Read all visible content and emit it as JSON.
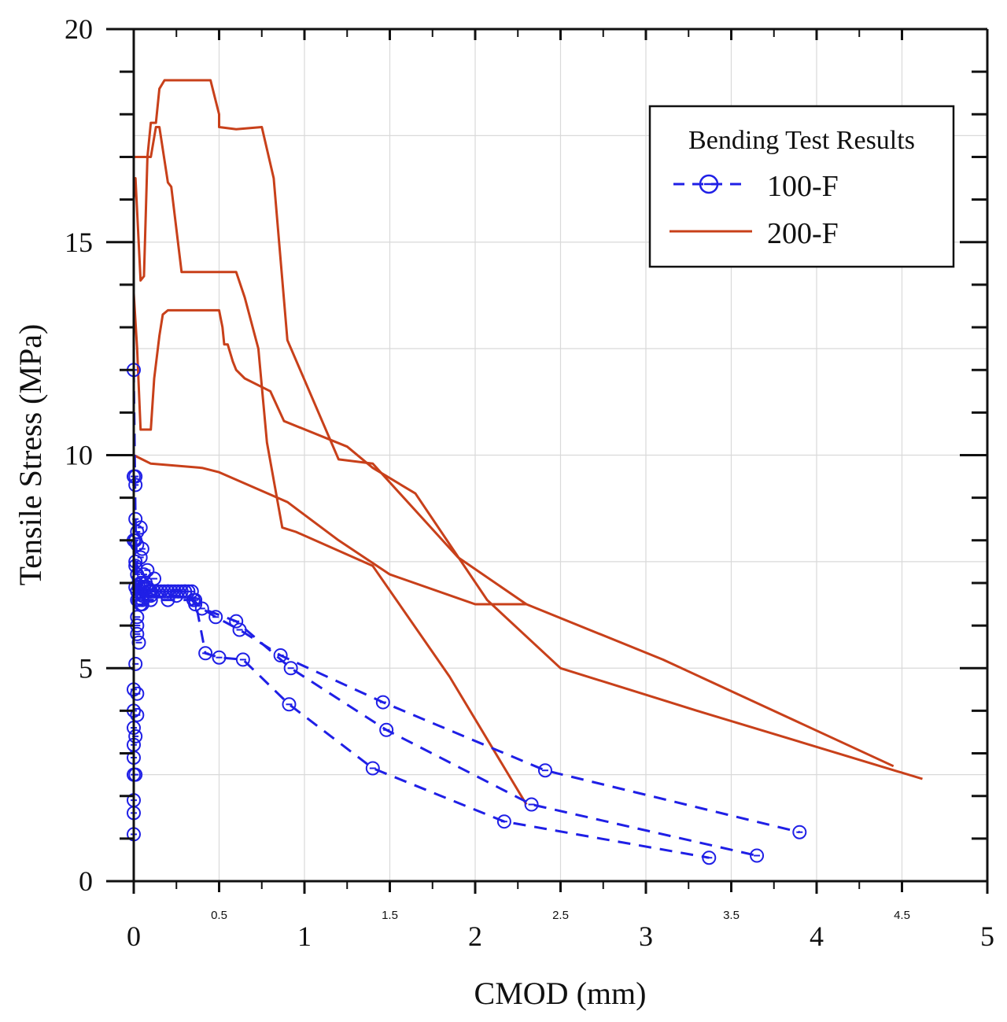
{
  "chart_data": {
    "type": "line",
    "title": "",
    "xlabel": "CMOD (mm)",
    "ylabel": "Tensile Stress (MPa)",
    "xlim": [
      0,
      5
    ],
    "ylim": [
      0,
      20
    ],
    "grid": true,
    "x_major_ticks": [
      "0",
      "1",
      "2",
      "3",
      "4",
      "5"
    ],
    "x_minor_ticks": [
      "0.5",
      "1.5",
      "2.5",
      "3.5",
      "4.5"
    ],
    "y_major_ticks": [
      "0",
      "5",
      "10",
      "15",
      "20"
    ],
    "legend": {
      "title": "Bending Test Results",
      "placement": "top-right",
      "entries": [
        "100-F",
        "200-F"
      ]
    },
    "colors": {
      "100-F": "#1f1fe6",
      "200-F": "#c8401a",
      "axis": "#111111",
      "grid": "#d9d9d9"
    },
    "series": [
      {
        "name": "100-F",
        "style": "dashed-circle",
        "curves": [
          {
            "x": [
              0.0,
              0.01,
              0.02,
              0.03,
              0.04,
              0.06,
              0.1,
              0.2,
              0.3,
              0.36,
              0.48,
              0.62,
              0.86,
              1.46,
              2.41,
              3.9
            ],
            "y": [
              12.0,
              8.5,
              7.2,
              6.9,
              7.0,
              6.9,
              6.8,
              6.8,
              6.8,
              6.5,
              6.2,
              5.9,
              5.3,
              4.2,
              2.6,
              1.15
            ]
          },
          {
            "x": [
              0.0,
              0.01,
              0.02,
              0.05,
              0.1,
              0.25,
              0.35,
              0.4,
              0.6,
              0.92,
              1.48,
              2.33,
              3.65
            ],
            "y": [
              9.5,
              7.5,
              6.8,
              6.7,
              6.7,
              6.7,
              6.6,
              6.4,
              6.1,
              5.0,
              3.55,
              1.8,
              0.6
            ]
          },
          {
            "x": [
              0.0,
              0.01,
              0.02,
              0.05,
              0.1,
              0.2,
              0.36,
              0.42,
              0.5,
              0.64,
              0.91,
              1.4,
              2.17,
              3.37
            ],
            "y": [
              8.0,
              6.9,
              6.6,
              6.6,
              6.6,
              6.6,
              6.6,
              5.35,
              5.25,
              5.2,
              4.15,
              2.65,
              1.4,
              0.55
            ]
          }
        ],
        "scatter_x": [
          0.0,
          0.0,
          0.0,
          0.0,
          0.0,
          0.0,
          0.0,
          0.0,
          0.0,
          0.01,
          0.01,
          0.01,
          0.01,
          0.02,
          0.02,
          0.02,
          0.02,
          0.03,
          0.03,
          0.03,
          0.04,
          0.04,
          0.04,
          0.05,
          0.05,
          0.06,
          0.07,
          0.08,
          0.09,
          0.1,
          0.12,
          0.14,
          0.16,
          0.18,
          0.2,
          0.22,
          0.24,
          0.26,
          0.28,
          0.3,
          0.32,
          0.34,
          0.01,
          0.01,
          0.02,
          0.02,
          0.01,
          0.03,
          0.02,
          0.04,
          0.05,
          0.08,
          0.12
        ],
        "scatter_y": [
          1.1,
          1.6,
          1.9,
          2.5,
          2.9,
          3.2,
          3.6,
          4.0,
          4.5,
          9.5,
          9.3,
          8.0,
          7.4,
          8.2,
          7.9,
          6.2,
          5.8,
          7.1,
          6.9,
          6.6,
          8.3,
          7.6,
          6.8,
          7.8,
          7.0,
          7.2,
          7.0,
          6.9,
          6.8,
          6.8,
          6.8,
          6.8,
          6.8,
          6.8,
          6.8,
          6.8,
          6.8,
          6.8,
          6.8,
          6.8,
          6.8,
          6.8,
          2.5,
          3.4,
          3.9,
          4.4,
          5.1,
          5.6,
          6.0,
          6.5,
          6.5,
          7.3,
          7.1
        ]
      },
      {
        "name": "200-F",
        "style": "solid",
        "curves": [
          {
            "x": [
              0.0,
              0.0,
              0.05,
              0.08,
              0.1,
              0.13,
              0.15,
              0.18,
              0.45,
              0.5,
              0.5,
              0.6,
              0.75,
              0.82,
              0.9,
              1.2,
              1.4,
              1.9,
              2.3
            ],
            "y": [
              15.0,
              17.0,
              17.0,
              17.0,
              17.8,
              17.8,
              18.6,
              18.8,
              18.8,
              18.0,
              17.7,
              17.65,
              17.7,
              16.5,
              12.7,
              9.9,
              9.8,
              7.6,
              6.5
            ]
          },
          {
            "x": [
              0.0,
              0.01,
              0.04,
              0.06,
              0.08,
              0.1,
              0.13,
              0.15,
              0.2,
              0.22,
              0.28,
              0.6,
              0.65,
              0.73,
              0.78,
              0.87,
              0.95,
              1.4,
              1.85,
              2.3
            ],
            "y": [
              16.0,
              16.5,
              14.1,
              14.2,
              17.0,
              17.0,
              17.7,
              17.7,
              16.4,
              16.3,
              14.3,
              14.3,
              13.7,
              12.5,
              10.3,
              8.3,
              8.2,
              7.4,
              4.8,
              1.8
            ]
          },
          {
            "x": [
              0.0,
              0.02,
              0.04,
              0.1,
              0.12,
              0.15,
              0.17,
              0.2,
              0.5,
              0.52,
              0.53,
              0.55,
              0.58,
              0.6,
              0.65,
              0.8,
              0.88,
              1.25,
              1.4,
              1.65,
              2.07,
              2.5,
              2.9,
              3.3,
              4.62
            ],
            "y": [
              13.8,
              12.5,
              10.6,
              10.6,
              11.8,
              12.8,
              13.3,
              13.4,
              13.4,
              13.0,
              12.6,
              12.6,
              12.2,
              12.0,
              11.8,
              11.5,
              10.8,
              10.2,
              9.7,
              9.1,
              6.6,
              5.0,
              4.5,
              4.0,
              2.4
            ]
          },
          {
            "x": [
              0.0,
              0.05,
              0.1,
              0.4,
              0.5,
              0.9,
              1.2,
              1.5,
              2.0,
              2.3,
              3.1,
              4.45
            ],
            "y": [
              10.0,
              9.9,
              9.8,
              9.7,
              9.6,
              8.9,
              8.0,
              7.2,
              6.5,
              6.5,
              5.2,
              2.7
            ]
          }
        ]
      }
    ]
  }
}
